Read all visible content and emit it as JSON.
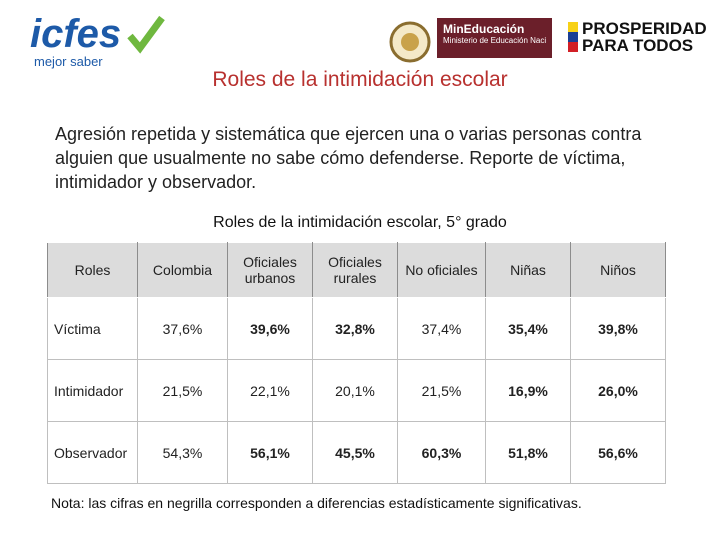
{
  "logos": {
    "icfes": "icfes",
    "icfes_tagline": "mejor saber",
    "ministry": "MinEducación",
    "ministry_sub": "Ministerio de Educación Nacional",
    "prosperity_1": "PROSPERIDAD",
    "prosperity_2": "PARA TODOS"
  },
  "title": "Roles de la intimidación escolar",
  "paragraph": "Agresión repetida y sistemática que ejercen una o varias personas contra alguien que usualmente no sabe cómo defenderse. Reporte de víctima, intimidador y observador.",
  "table": {
    "title": "Roles de la intimidación escolar, 5° grado",
    "columns": [
      "Roles",
      "Colombia",
      "Oficiales urbanos",
      "Oficiales rurales",
      "No oficiales",
      "Niñas",
      "Niños"
    ],
    "rows": [
      [
        "Víctima",
        "37,6%",
        "39,6%",
        "32,8%",
        "37,4%",
        "35,4%",
        "39,8%"
      ],
      [
        "Intimidador",
        "21,5%",
        "22,1%",
        "20,1%",
        "21,5%",
        "16,9%",
        "26,0%"
      ],
      [
        "Observador",
        "54,3%",
        "56,1%",
        "45,5%",
        "60,3%",
        "51,8%",
        "56,6%"
      ]
    ],
    "bold": [
      [
        false,
        false,
        true,
        true,
        false,
        true,
        true
      ],
      [
        false,
        false,
        false,
        false,
        false,
        true,
        true
      ],
      [
        false,
        false,
        true,
        true,
        true,
        true,
        true
      ]
    ]
  },
  "note": "Nota: las cifras en negrilla corresponden a diferencias estadísticamente significativas."
}
